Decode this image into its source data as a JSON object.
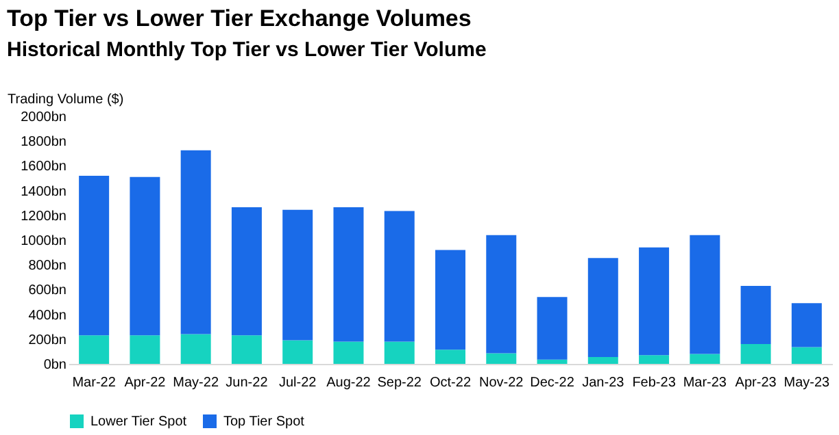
{
  "chart_data": {
    "type": "bar",
    "title": "Top Tier vs Lower Tier Exchange Volumes",
    "subtitle": "Historical Monthly Top Tier vs Lower Tier Volume",
    "ylabel": "Trading Volume ($)",
    "categories": [
      "Mar-22",
      "Apr-22",
      "May-22",
      "Jun-22",
      "Jul-22",
      "Aug-22",
      "Sep-22",
      "Oct-22",
      "Nov-22",
      "Dec-22",
      "Jan-23",
      "Feb-23",
      "Mar-23",
      "Apr-23",
      "May-23"
    ],
    "stacked": true,
    "series": [
      {
        "name": "Lower Tier Spot",
        "color": "#16d3c0",
        "values": [
          230,
          230,
          240,
          230,
          190,
          180,
          180,
          115,
          85,
          35,
          55,
          70,
          80,
          160,
          135
        ]
      },
      {
        "name": "Top Tier Spot",
        "color": "#1a6be8",
        "values": [
          1290,
          1280,
          1485,
          1035,
          1055,
          1085,
          1055,
          805,
          955,
          505,
          800,
          870,
          960,
          470,
          355
        ]
      }
    ],
    "ylim": [
      0,
      2000
    ],
    "yticks": [
      {
        "value": 0,
        "label": "0bn"
      },
      {
        "value": 200,
        "label": "200bn"
      },
      {
        "value": 400,
        "label": "400bn"
      },
      {
        "value": 600,
        "label": "600bn"
      },
      {
        "value": 800,
        "label": "800bn"
      },
      {
        "value": 1000,
        "label": "1000bn"
      },
      {
        "value": 1200,
        "label": "1200bn"
      },
      {
        "value": 1400,
        "label": "1400bn"
      },
      {
        "value": 1600,
        "label": "1600bn"
      },
      {
        "value": 1800,
        "label": "1800bn"
      },
      {
        "value": 2000,
        "label": "2000bn"
      }
    ],
    "grid": false,
    "legend": "bottom"
  }
}
